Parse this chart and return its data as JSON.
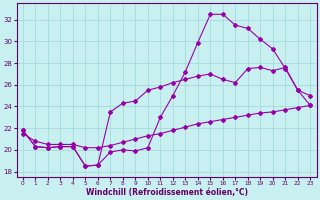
{
  "xlabel": "Windchill (Refroidissement éolien,°C)",
  "bg_color": "#c8f0f0",
  "line_color": "#9900aa",
  "grid_color": "#aadddd",
  "axis_color": "#660066",
  "x_ticks": [
    0,
    1,
    2,
    3,
    4,
    5,
    6,
    7,
    8,
    9,
    10,
    11,
    12,
    13,
    14,
    15,
    16,
    17,
    18,
    19,
    20,
    21,
    22,
    23
  ],
  "y_ticks": [
    18,
    20,
    22,
    24,
    26,
    28,
    30,
    32
  ],
  "ylim": [
    17.5,
    33.5
  ],
  "xlim": [
    -0.5,
    23.5
  ],
  "curves": [
    [
      21.8,
      20.3,
      20.2,
      20.3,
      20.3,
      18.5,
      18.6,
      19.8,
      20.0,
      19.9,
      20.2,
      23.0,
      25.0,
      27.2,
      29.9,
      32.5,
      32.5,
      31.5,
      31.2,
      30.2,
      29.3,
      27.5,
      25.5,
      24.1
    ],
    [
      21.8,
      20.3,
      20.2,
      20.3,
      20.3,
      18.5,
      18.6,
      23.5,
      24.3,
      24.5,
      25.5,
      25.8,
      26.2,
      26.5,
      26.8,
      27.0,
      26.5,
      26.2,
      27.5,
      27.6,
      27.3,
      27.6,
      25.5,
      25.0
    ],
    [
      21.5,
      20.8,
      20.5,
      20.5,
      20.5,
      20.2,
      20.2,
      20.4,
      20.7,
      21.0,
      21.3,
      21.5,
      21.8,
      22.1,
      22.4,
      22.6,
      22.8,
      23.0,
      23.2,
      23.4,
      23.5,
      23.7,
      23.9,
      24.1
    ]
  ]
}
